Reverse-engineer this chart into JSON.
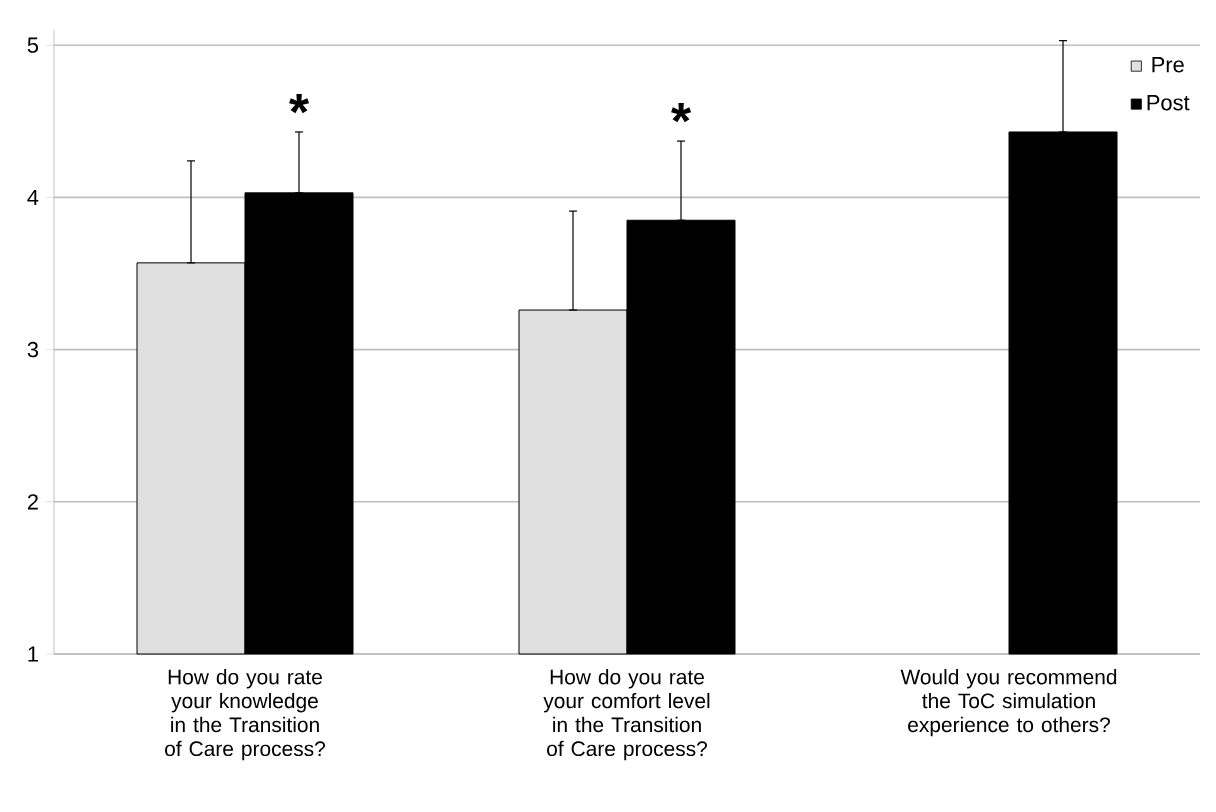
{
  "chart_data": {
    "type": "bar",
    "categories": [
      "How do you rate your knowledge in the Transition of Care process?",
      "How do you rate your comfort level in the Transition of Care process?",
      "Would you recommend the ToC simulation experience to others?"
    ],
    "series": [
      {
        "name": "Pre",
        "color": "#e0e0e0",
        "values": [
          3.57,
          3.26,
          null
        ],
        "errors": [
          [
            3.57,
            4.24
          ],
          [
            3.26,
            3.91
          ],
          null
        ]
      },
      {
        "name": "Post",
        "color": "#000000",
        "values": [
          4.03,
          3.85,
          4.43
        ],
        "errors": [
          [
            4.03,
            4.43
          ],
          [
            3.85,
            4.37
          ],
          [
            4.43,
            5.03
          ]
        ]
      }
    ],
    "ylim": [
      1,
      5.1
    ],
    "yticks": [
      1,
      2,
      3,
      4,
      5
    ],
    "grid": "y",
    "legend": "top right",
    "annotations": [
      "*",
      "*"
    ]
  }
}
